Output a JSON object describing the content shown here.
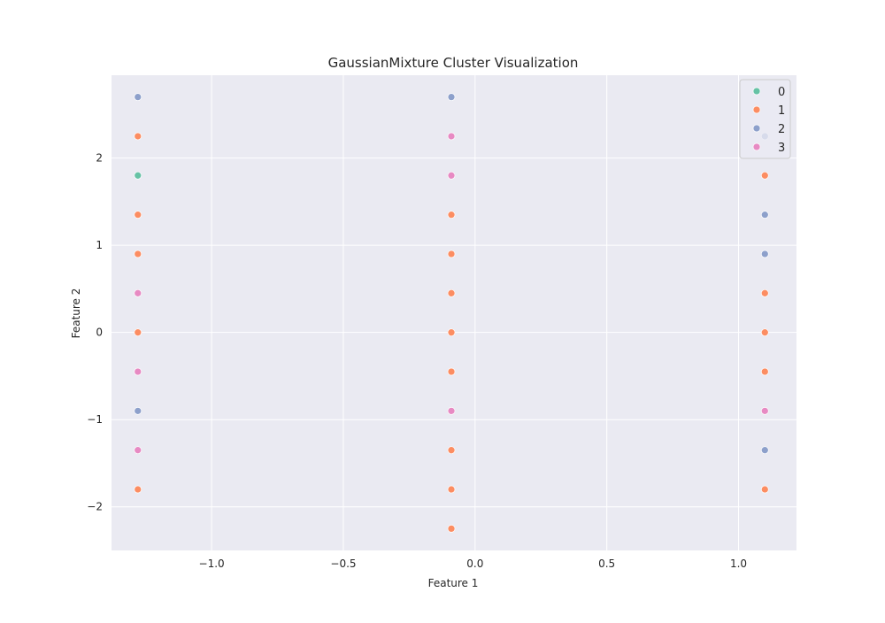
{
  "chart_data": {
    "type": "scatter",
    "title": "GaussianMixture Cluster Visualization",
    "xlabel": "Feature 1",
    "ylabel": "Feature 2",
    "xlim": [
      -1.38,
      1.22
    ],
    "ylim": [
      -2.5,
      2.95
    ],
    "xticks": [
      -1.0,
      -0.5,
      0.0,
      0.5,
      1.0
    ],
    "xtick_labels": [
      "−1.0",
      "−0.5",
      "0.0",
      "0.5",
      "1.0"
    ],
    "yticks": [
      -2,
      -1,
      0,
      1,
      2
    ],
    "ytick_labels": [
      "−2",
      "−1",
      "0",
      "1",
      "2"
    ],
    "grid": true,
    "legend_position": "top-right",
    "background": "#eaeaf2",
    "grid_color": "#ffffff",
    "series": [
      {
        "name": "0",
        "color": "#66c2a5",
        "points": [
          [
            -1.28,
            1.8
          ]
        ]
      },
      {
        "name": "1",
        "color": "#fc8d62",
        "points": [
          [
            -1.28,
            2.25
          ],
          [
            -1.28,
            1.35
          ],
          [
            -1.28,
            0.9
          ],
          [
            -1.28,
            0.0
          ],
          [
            -1.28,
            -1.8
          ],
          [
            -0.09,
            1.35
          ],
          [
            -0.09,
            0.9
          ],
          [
            -0.09,
            0.45
          ],
          [
            -0.09,
            0.0
          ],
          [
            -0.09,
            -0.45
          ],
          [
            -0.09,
            -1.35
          ],
          [
            -0.09,
            -1.8
          ],
          [
            -0.09,
            -2.25
          ],
          [
            1.1,
            1.8
          ],
          [
            1.1,
            0.45
          ],
          [
            1.1,
            0.0
          ],
          [
            1.1,
            -0.45
          ],
          [
            1.1,
            -1.8
          ]
        ]
      },
      {
        "name": "2",
        "color": "#8da0cb",
        "points": [
          [
            -1.28,
            2.7
          ],
          [
            -1.28,
            -0.9
          ],
          [
            -0.09,
            2.7
          ],
          [
            1.1,
            2.25
          ],
          [
            1.1,
            1.35
          ],
          [
            1.1,
            0.9
          ],
          [
            1.1,
            -1.35
          ]
        ]
      },
      {
        "name": "3",
        "color": "#e78ac3",
        "points": [
          [
            -1.28,
            0.45
          ],
          [
            -1.28,
            -0.45
          ],
          [
            -1.28,
            -1.35
          ],
          [
            -0.09,
            2.25
          ],
          [
            -0.09,
            1.8
          ],
          [
            -0.09,
            -0.9
          ],
          [
            1.1,
            -0.9
          ]
        ]
      }
    ]
  }
}
